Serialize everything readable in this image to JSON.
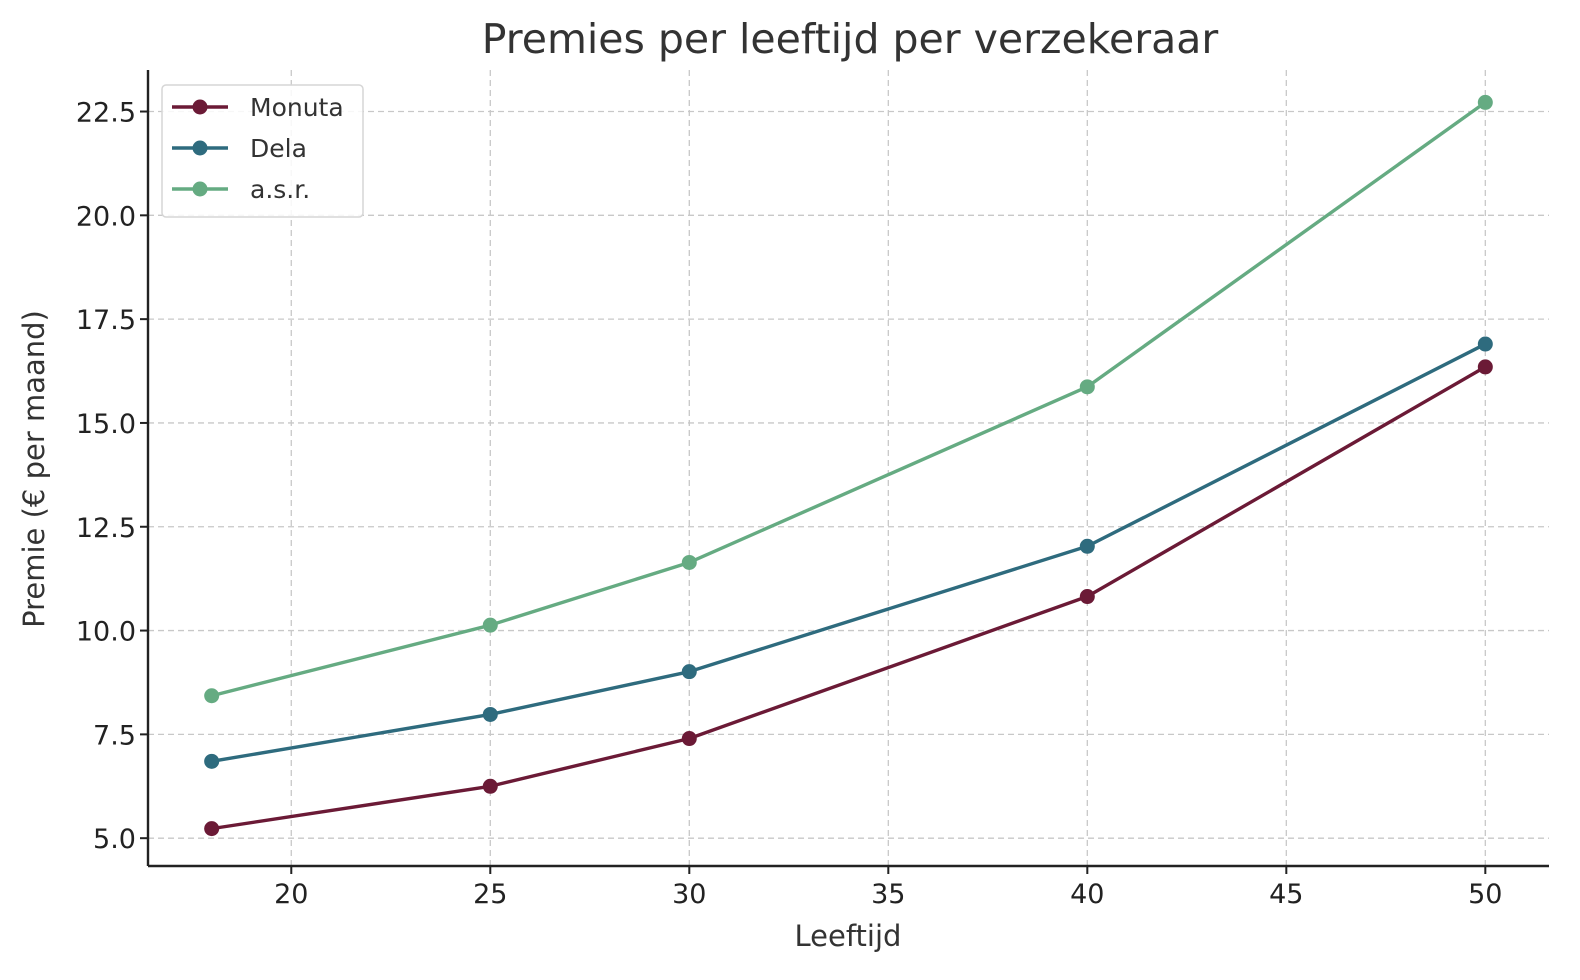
{
  "chart_data": {
    "type": "line",
    "title": "Premies per leeftijd per verzekeraar",
    "xlabel": "Leeftijd",
    "ylabel": "Premie (€ per maand)",
    "xlim": [
      16.4,
      51.6
    ],
    "ylim": [
      4.33,
      23.5
    ],
    "xticks": [
      20,
      25,
      30,
      35,
      40,
      45,
      50
    ],
    "xtick_labels": [
      "20",
      "25",
      "30",
      "35",
      "40",
      "45",
      "50"
    ],
    "yticks": [
      5.0,
      7.5,
      10.0,
      12.5,
      15.0,
      17.5,
      20.0,
      22.5
    ],
    "ytick_labels": [
      "5.0",
      "7.5",
      "10.0",
      "12.5",
      "15.0",
      "17.5",
      "20.0",
      "22.5"
    ],
    "grid": true,
    "legend_position": "top-left",
    "x": [
      18,
      25,
      30,
      40,
      50
    ],
    "series": [
      {
        "name": "Monuta",
        "color": "#6b1a36",
        "values": [
          5.23,
          6.25,
          7.4,
          10.82,
          16.35
        ]
      },
      {
        "name": "Dela",
        "color": "#2e6b7e",
        "values": [
          6.85,
          7.98,
          9.01,
          12.03,
          16.9
        ]
      },
      {
        "name": "a.s.r.",
        "color": "#65ab82",
        "values": [
          8.43,
          10.13,
          11.64,
          15.87,
          22.72
        ]
      }
    ]
  }
}
